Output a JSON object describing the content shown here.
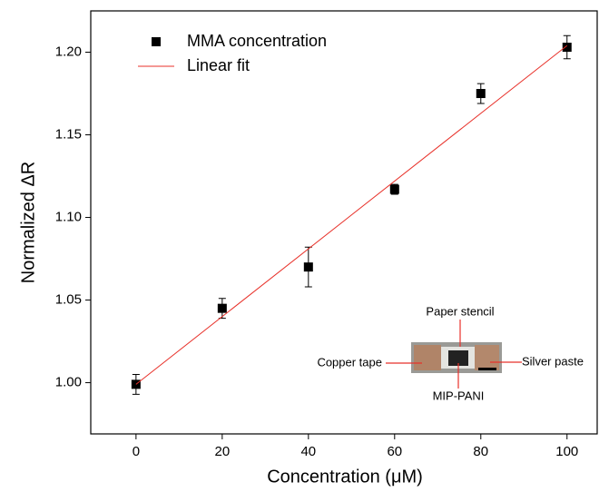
{
  "chart_data": {
    "type": "scatter",
    "x_label": "Concentration (μM)",
    "y_label": "Normalized ΔR",
    "xlim": [
      -10.5,
      107
    ],
    "ylim": [
      0.969,
      1.225
    ],
    "xticks": [
      0,
      20,
      40,
      60,
      80,
      100
    ],
    "yticks": [
      {
        "value": 1,
        "label": "1.00"
      },
      1.05,
      {
        "value": 1.1,
        "label": "1.10"
      },
      1.15,
      {
        "value": 1.2,
        "label": "1.20"
      }
    ],
    "series": [
      {
        "name": "MMA concentration",
        "mark": "square",
        "color": "#000000",
        "x": [
          0,
          20,
          40,
          60,
          80,
          100
        ],
        "values": [
          0.999,
          1.045,
          1.07,
          1.117,
          1.175,
          1.203
        ],
        "errors": [
          0.006,
          0.006,
          0.012,
          0.003,
          0.006,
          0.007
        ]
      },
      {
        "name": "Linear fit",
        "mark": "line",
        "color": "#e8312a",
        "x": [
          0,
          100
        ],
        "values": [
          0.999,
          1.204
        ]
      }
    ],
    "legend": "upper-left",
    "inset_labels": {
      "top": "Paper stencil",
      "left": "Copper tape",
      "right": "Silver paste",
      "bottom": "MIP-PANI"
    }
  }
}
